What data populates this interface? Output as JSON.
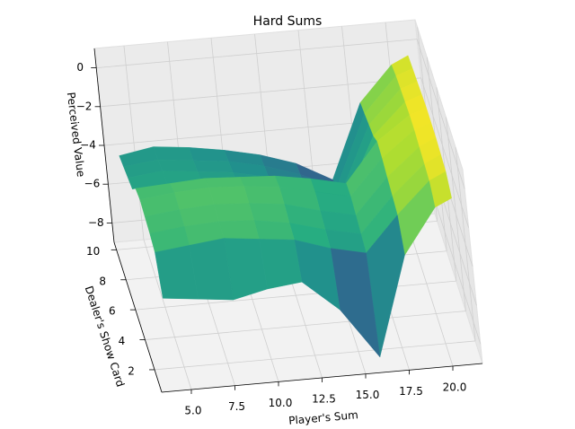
{
  "chart_data": {
    "type": "surface3d",
    "title": "Hard Sums",
    "x_label": "Player's Sum",
    "y_label": "Dealer's Show Card",
    "z_label": "Perceived Value",
    "colormap": "viridis",
    "grid": true,
    "x": [
      4,
      6,
      8,
      10,
      12,
      14,
      16,
      18,
      20,
      21
    ],
    "y": [
      1,
      2,
      3,
      4,
      5,
      6,
      7,
      8,
      9,
      10
    ],
    "z": [
      [
        -4.6,
        -4.8,
        -5.0,
        -4.6,
        -4.4,
        -6.0,
        -8.6,
        -3.5,
        -1.2,
        -0.8
      ],
      [
        -3.0,
        -2.8,
        -2.6,
        -2.8,
        -3.0,
        -3.6,
        -4.0,
        -2.2,
        -0.6,
        -0.2
      ],
      [
        -2.8,
        -2.6,
        -2.5,
        -2.6,
        -2.9,
        -3.4,
        -3.8,
        -2.0,
        -0.5,
        -0.1
      ],
      [
        -2.7,
        -2.5,
        -2.4,
        -2.5,
        -2.7,
        -3.2,
        -3.6,
        -1.8,
        -0.4,
        0.0
      ],
      [
        -2.6,
        -2.4,
        -2.3,
        -2.4,
        -2.6,
        -3.0,
        -3.4,
        -1.6,
        -0.3,
        0.0
      ],
      [
        -2.8,
        -2.7,
        -2.6,
        -2.7,
        -2.8,
        -3.1,
        -3.5,
        -1.5,
        -0.3,
        0.0
      ],
      [
        -3.6,
        -3.5,
        -3.6,
        -3.8,
        -4.0,
        -4.6,
        -5.2,
        -2.0,
        -0.4,
        -0.1
      ],
      [
        -3.8,
        -3.6,
        -3.8,
        -4.0,
        -4.4,
        -5.0,
        -5.6,
        -2.2,
        -0.5,
        -0.2
      ],
      [
        -4.0,
        -3.8,
        -4.0,
        -4.2,
        -4.6,
        -5.2,
        -6.0,
        -2.4,
        -0.6,
        -0.3
      ],
      [
        -4.2,
        -3.9,
        -4.1,
        -4.4,
        -4.8,
        -5.4,
        -6.4,
        -2.6,
        -0.8,
        -0.4
      ]
    ],
    "xlim": [
      3.3,
      21.7
    ],
    "ylim": [
      0.5,
      10.5
    ],
    "zlim": [
      -9,
      1
    ],
    "xticks": [
      {
        "value": 5,
        "label": "5.0"
      },
      {
        "value": 7.5,
        "label": "7.5"
      },
      {
        "value": 10,
        "label": "10.0"
      },
      {
        "value": 12.5,
        "label": "12.5"
      },
      {
        "value": 15,
        "label": "15.0"
      },
      {
        "value": 17.5,
        "label": "17.5"
      },
      {
        "value": 20,
        "label": "20.0"
      }
    ],
    "yticks": [
      2,
      4,
      6,
      8,
      10
    ],
    "zticks": [
      0,
      {
        "value": -2,
        "label": "−2"
      },
      {
        "value": -4,
        "label": "−4"
      },
      {
        "value": -6,
        "label": "−6"
      },
      {
        "value": -8,
        "label": "−8"
      }
    ]
  }
}
